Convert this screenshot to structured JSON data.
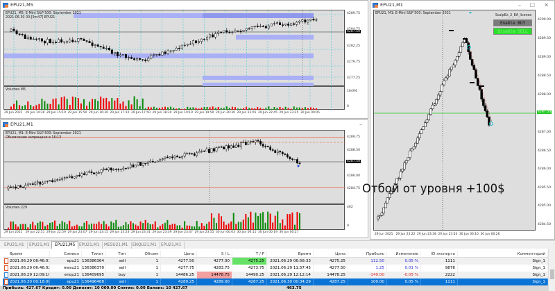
{
  "windows": {
    "m5": {
      "title": "EPU21,M5",
      "info1": "EPU21, M5:  E-Mini S&P 500: September 2021",
      "info2": "2021.06.30 00:[9m47]  EPU21",
      "price_labels": [
        "4289.75",
        "4284.75",
        "4282.25",
        "4279.75",
        "4277.25"
      ],
      "current_price": "4287.50",
      "volume_label": "Volumes M5",
      "volume_max": "16494",
      "volume_min": "0",
      "time_labels": [
        "29 Jun 2021",
        "29 Jun 14:30",
        "29 Jun 15:10",
        "29 Jun 15:50",
        "29 Jun 16:30",
        "29 Jun 17:10",
        "29 Jun 17:50",
        "29 Jun 18:30",
        "29 Jun 19:10",
        "29 Jun 19:50",
        "29 Jun 20:30",
        "29 Jun 22:05",
        "29 Jun 22:45",
        "29 Jun 23:25",
        "30 Jun 00:05"
      ]
    },
    "m1": {
      "title": "EPU21,M1",
      "info1": "EPU21, M1:  E-Mini S&P 500: September 2021",
      "info2": "Обновление запрещено в 16:13",
      "price_labels": [
        "4289.75",
        "4288.50",
        "4287.25",
        "4286.00",
        "4284.75"
      ],
      "current_price": "4287.50",
      "volume_label": "Volumes 229",
      "volume_max": "462",
      "volume_min": "0",
      "time_labels": [
        "29 Jun 2021",
        "29 Jun 22:51",
        "29 Jun 22:59",
        "29 Jun 23:07",
        "29 Jun 23:15",
        "29 Jun 23:23",
        "29 Jun 23:31",
        "29 Jun 23:39",
        "29 Jun 23:47",
        "29 Jun 23:55",
        "30 Jun 00:03",
        "30 Jun 00:11",
        "30 Jun 00:19",
        "30 Jun 00:27"
      ]
    },
    "right": {
      "title": "EPU21,M1",
      "info1": "EPU21, M1:  E-Mini S&P 500: September 2021",
      "ea_name": "ScalpEx_2_EA_license",
      "enable_buy": "Enable BUY",
      "disable_sell": "Disable SELL",
      "price_labels": [
        "4290.00",
        "4289.50",
        "4289.00",
        "4288.50",
        "4288.00",
        "4287.00",
        "4286.50",
        "4286.00",
        "4285.50",
        "4285.00",
        "4284.50",
        "4284.00"
      ],
      "current_price": "4287.50",
      "time_labels": [
        "29 Jun 2021",
        "29 Jun 23:22",
        "29 Jun 23:38",
        "29 Jun 23:54",
        "30 Jun 00:10",
        "30 Jun 00:26"
      ],
      "annotation": "Отбой от уровня +100$"
    }
  },
  "tabs": [
    {
      "label": "EPU21,H1",
      "active": false
    },
    {
      "label": "EPU21,M1",
      "active": false
    },
    {
      "label": "EPU21,M5",
      "active": true
    },
    {
      "label": "EPU21,M1",
      "active": false
    },
    {
      "label": "MESU21,M1",
      "active": false
    },
    {
      "label": "ENQU21,M1",
      "active": false
    },
    {
      "label": "EPU21,M1",
      "active": false
    }
  ],
  "table": {
    "headers": [
      "Время",
      "Символ",
      "Тикет",
      "Тип",
      "Объем",
      "Цена",
      "S / L",
      "T / P",
      "Время",
      "Цена",
      "Прибыль",
      "Изменение",
      "ID эксперта",
      "Комментарий"
    ],
    "rows": [
      [
        "2021.06.29 06:46:01",
        "epu21",
        "136386364",
        "sell",
        "1",
        "4277.50",
        "4277.00",
        "4275.25",
        "2021.06.29 06:58:33",
        "4275.25",
        "112.50",
        "0.05 %",
        "1111",
        "Sign_1"
      ],
      [
        "2021.06.29 06:46:02",
        "mesu21",
        "136386370",
        "sell",
        "1",
        "4277.75",
        "4283.75",
        "4273.75",
        "2021.06.29 11:57:45",
        "4277.50",
        "1.25",
        "0.01 %",
        "9876",
        "Sign_1"
      ],
      [
        "2021.06.29 12:09:10",
        "enqu21",
        "136409695",
        "buy",
        "1",
        "14486.25",
        "14478.75",
        "14490.25",
        "2021.06.29 12:12:14",
        "14478.25",
        "-140.00",
        "-0.05 %",
        "2222",
        "Sign_1"
      ],
      [
        "2021.06.30 00:18:00",
        "epu21",
        "136496488",
        "sell",
        "1",
        "4289.25",
        "4289.00",
        "4287.25",
        "2021.06.30 00:34:29",
        "4287.25",
        "100.00",
        "0.05 %",
        "1111",
        "Sign_1"
      ]
    ],
    "footer": "Прибыль: 427.67  Кредит: 0.00  Депозит: 10 000.00  Снятие: 0.00  Баланс: 10 427.67",
    "footer_total": "463.75"
  },
  "colors": {
    "tp_hit": "#66e266",
    "sl_hit": "#f4a0a0",
    "profit_pos": "#2b2bd8",
    "profit_neg": "#e02020",
    "selected": "#0a74d6",
    "bull": "#0a8a0a",
    "bear": "#f00000",
    "zone": "#aab0f5"
  }
}
